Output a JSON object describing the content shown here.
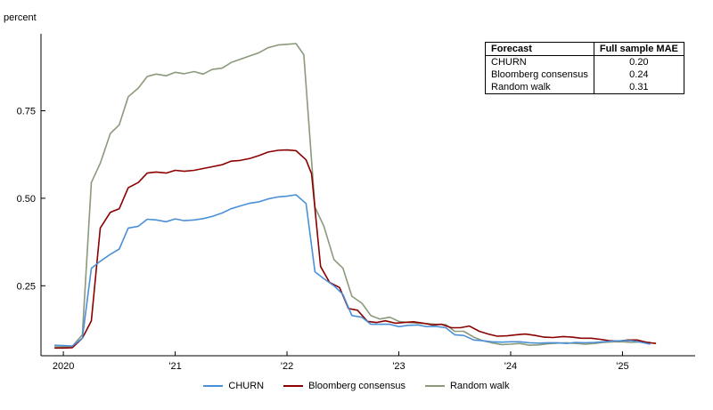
{
  "chart_data": {
    "type": "line",
    "title": "",
    "xlabel": "",
    "ylabel": "percent",
    "ylim": [
      0.05,
      0.97
    ],
    "xlim": [
      2019.8,
      2025.65
    ],
    "yticks": [
      0.25,
      0.5,
      0.75
    ],
    "ytick_labels": [
      "0.25",
      "0.50",
      "0.75"
    ],
    "xticks": [
      2020,
      2021,
      2022,
      2023,
      2024,
      2025
    ],
    "xtick_labels": [
      "2020",
      "'21",
      "'22",
      "'23",
      "'24",
      "'25"
    ],
    "legend_position": "bottom",
    "series": [
      {
        "name": "CHURN",
        "color": "#4a90d9",
        "points": [
          [
            2019.92,
            0.08
          ],
          [
            2020.0,
            0.079
          ],
          [
            2020.08,
            0.078
          ],
          [
            2020.17,
            0.1
          ],
          [
            2020.25,
            0.3
          ],
          [
            2020.33,
            0.32
          ],
          [
            2020.42,
            0.34
          ],
          [
            2020.5,
            0.355
          ],
          [
            2020.58,
            0.415
          ],
          [
            2020.67,
            0.42
          ],
          [
            2020.75,
            0.44
          ],
          [
            2020.83,
            0.438
          ],
          [
            2020.92,
            0.433
          ],
          [
            2021.0,
            0.441
          ],
          [
            2021.08,
            0.436
          ],
          [
            2021.17,
            0.438
          ],
          [
            2021.25,
            0.442
          ],
          [
            2021.33,
            0.448
          ],
          [
            2021.42,
            0.458
          ],
          [
            2021.5,
            0.47
          ],
          [
            2021.58,
            0.478
          ],
          [
            2021.67,
            0.486
          ],
          [
            2021.75,
            0.49
          ],
          [
            2021.83,
            0.498
          ],
          [
            2021.92,
            0.504
          ],
          [
            2022.0,
            0.506
          ],
          [
            2022.08,
            0.51
          ],
          [
            2022.17,
            0.485
          ],
          [
            2022.25,
            0.29
          ],
          [
            2022.33,
            0.27
          ],
          [
            2022.42,
            0.25
          ],
          [
            2022.5,
            0.225
          ],
          [
            2022.58,
            0.165
          ],
          [
            2022.67,
            0.16
          ],
          [
            2022.75,
            0.14
          ],
          [
            2022.83,
            0.14
          ],
          [
            2022.92,
            0.14
          ],
          [
            2023.0,
            0.133
          ],
          [
            2023.08,
            0.137
          ],
          [
            2023.17,
            0.138
          ],
          [
            2023.25,
            0.133
          ],
          [
            2023.33,
            0.134
          ],
          [
            2023.42,
            0.13
          ],
          [
            2023.5,
            0.11
          ],
          [
            2023.58,
            0.108
          ],
          [
            2023.67,
            0.095
          ],
          [
            2023.75,
            0.093
          ],
          [
            2023.83,
            0.09
          ],
          [
            2023.92,
            0.089
          ],
          [
            2024.0,
            0.09
          ],
          [
            2024.08,
            0.09
          ],
          [
            2024.17,
            0.087
          ],
          [
            2024.25,
            0.086
          ],
          [
            2024.33,
            0.087
          ],
          [
            2024.42,
            0.087
          ],
          [
            2024.5,
            0.085
          ],
          [
            2024.58,
            0.088
          ],
          [
            2024.67,
            0.087
          ],
          [
            2024.75,
            0.088
          ],
          [
            2024.83,
            0.09
          ],
          [
            2024.92,
            0.092
          ],
          [
            2025.0,
            0.093
          ],
          [
            2025.08,
            0.093
          ],
          [
            2025.17,
            0.088
          ],
          [
            2025.25,
            0.083
          ]
        ]
      },
      {
        "name": "Bloomberg consensus",
        "color": "#8b0000",
        "points": [
          [
            2019.92,
            0.072
          ],
          [
            2020.0,
            0.072
          ],
          [
            2020.08,
            0.073
          ],
          [
            2020.17,
            0.1
          ],
          [
            2020.25,
            0.15
          ],
          [
            2020.33,
            0.415
          ],
          [
            2020.42,
            0.46
          ],
          [
            2020.5,
            0.47
          ],
          [
            2020.58,
            0.53
          ],
          [
            2020.67,
            0.545
          ],
          [
            2020.75,
            0.572
          ],
          [
            2020.83,
            0.575
          ],
          [
            2020.92,
            0.572
          ],
          [
            2021.0,
            0.58
          ],
          [
            2021.08,
            0.577
          ],
          [
            2021.17,
            0.58
          ],
          [
            2021.25,
            0.585
          ],
          [
            2021.33,
            0.59
          ],
          [
            2021.42,
            0.596
          ],
          [
            2021.5,
            0.606
          ],
          [
            2021.58,
            0.608
          ],
          [
            2021.67,
            0.614
          ],
          [
            2021.75,
            0.622
          ],
          [
            2021.83,
            0.632
          ],
          [
            2021.92,
            0.637
          ],
          [
            2022.0,
            0.638
          ],
          [
            2022.08,
            0.636
          ],
          [
            2022.17,
            0.61
          ],
          [
            2022.22,
            0.57
          ],
          [
            2022.3,
            0.305
          ],
          [
            2022.38,
            0.26
          ],
          [
            2022.47,
            0.245
          ],
          [
            2022.55,
            0.185
          ],
          [
            2022.63,
            0.18
          ],
          [
            2022.72,
            0.148
          ],
          [
            2022.8,
            0.145
          ],
          [
            2022.88,
            0.15
          ],
          [
            2022.97,
            0.143
          ],
          [
            2023.05,
            0.145
          ],
          [
            2023.13,
            0.147
          ],
          [
            2023.22,
            0.143
          ],
          [
            2023.3,
            0.138
          ],
          [
            2023.38,
            0.14
          ],
          [
            2023.47,
            0.13
          ],
          [
            2023.55,
            0.13
          ],
          [
            2023.63,
            0.135
          ],
          [
            2023.72,
            0.12
          ],
          [
            2023.8,
            0.112
          ],
          [
            2023.88,
            0.106
          ],
          [
            2023.97,
            0.107
          ],
          [
            2024.05,
            0.11
          ],
          [
            2024.13,
            0.112
          ],
          [
            2024.22,
            0.108
          ],
          [
            2024.3,
            0.103
          ],
          [
            2024.38,
            0.102
          ],
          [
            2024.47,
            0.105
          ],
          [
            2024.55,
            0.103
          ],
          [
            2024.63,
            0.1
          ],
          [
            2024.72,
            0.1
          ],
          [
            2024.8,
            0.097
          ],
          [
            2024.88,
            0.093
          ],
          [
            2024.97,
            0.092
          ],
          [
            2025.05,
            0.095
          ],
          [
            2025.13,
            0.095
          ],
          [
            2025.22,
            0.088
          ],
          [
            2025.3,
            0.085
          ]
        ]
      },
      {
        "name": "Random walk",
        "color": "#8a9a7a",
        "points": [
          [
            2019.92,
            0.075
          ],
          [
            2020.0,
            0.076
          ],
          [
            2020.08,
            0.077
          ],
          [
            2020.17,
            0.11
          ],
          [
            2020.25,
            0.545
          ],
          [
            2020.33,
            0.6
          ],
          [
            2020.42,
            0.685
          ],
          [
            2020.5,
            0.71
          ],
          [
            2020.58,
            0.79
          ],
          [
            2020.67,
            0.815
          ],
          [
            2020.75,
            0.848
          ],
          [
            2020.83,
            0.855
          ],
          [
            2020.92,
            0.85
          ],
          [
            2021.0,
            0.86
          ],
          [
            2021.08,
            0.856
          ],
          [
            2021.17,
            0.862
          ],
          [
            2021.25,
            0.855
          ],
          [
            2021.33,
            0.868
          ],
          [
            2021.42,
            0.872
          ],
          [
            2021.5,
            0.888
          ],
          [
            2021.58,
            0.897
          ],
          [
            2021.67,
            0.907
          ],
          [
            2021.75,
            0.916
          ],
          [
            2021.83,
            0.93
          ],
          [
            2021.92,
            0.938
          ],
          [
            2022.0,
            0.94
          ],
          [
            2022.08,
            0.942
          ],
          [
            2022.15,
            0.91
          ],
          [
            2022.25,
            0.475
          ],
          [
            2022.33,
            0.42
          ],
          [
            2022.42,
            0.325
          ],
          [
            2022.5,
            0.3
          ],
          [
            2022.58,
            0.22
          ],
          [
            2022.67,
            0.2
          ],
          [
            2022.75,
            0.165
          ],
          [
            2022.83,
            0.155
          ],
          [
            2022.92,
            0.16
          ],
          [
            2023.0,
            0.148
          ],
          [
            2023.08,
            0.145
          ],
          [
            2023.17,
            0.143
          ],
          [
            2023.25,
            0.142
          ],
          [
            2023.33,
            0.14
          ],
          [
            2023.42,
            0.139
          ],
          [
            2023.5,
            0.12
          ],
          [
            2023.58,
            0.12
          ],
          [
            2023.67,
            0.103
          ],
          [
            2023.75,
            0.093
          ],
          [
            2023.83,
            0.087
          ],
          [
            2023.92,
            0.082
          ],
          [
            2024.0,
            0.083
          ],
          [
            2024.08,
            0.085
          ],
          [
            2024.17,
            0.08
          ],
          [
            2024.25,
            0.081
          ],
          [
            2024.33,
            0.084
          ],
          [
            2024.42,
            0.086
          ],
          [
            2024.5,
            0.087
          ],
          [
            2024.58,
            0.085
          ],
          [
            2024.67,
            0.083
          ],
          [
            2024.75,
            0.085
          ],
          [
            2024.83,
            0.088
          ],
          [
            2024.92,
            0.09
          ],
          [
            2025.0,
            0.09
          ],
          [
            2025.08,
            0.088
          ],
          [
            2025.17,
            0.09
          ],
          [
            2025.25,
            0.088
          ]
        ]
      }
    ],
    "annotation_table": {
      "headers": [
        "Forecast",
        "Full sample MAE"
      ],
      "rows": [
        [
          "CHURN",
          "0.20"
        ],
        [
          "Bloomberg consensus",
          "0.24"
        ],
        [
          "Random walk",
          "0.31"
        ]
      ]
    }
  }
}
